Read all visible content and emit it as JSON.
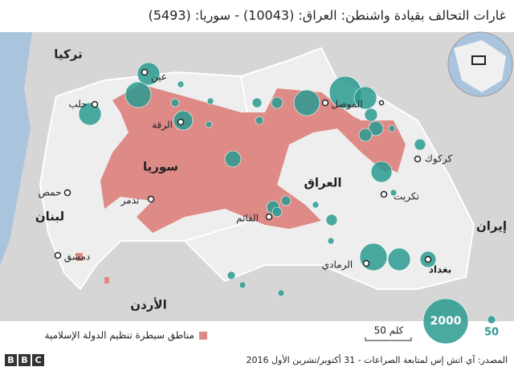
{
  "title": "غارات التحالف بقيادة واشنطن: العراق: (10043) - سوريا: (5493)",
  "countries": [
    "تركيا",
    "سوريا",
    "العراق",
    "لبنان",
    "الأردن",
    "إيران"
  ],
  "cities": [
    "عين",
    "حلب",
    "الرقة",
    "تدمر",
    "حمص",
    "دمشق",
    "القائم",
    "الموصل",
    "كركوك",
    "تكريت",
    "الرمادي",
    "بغداد"
  ],
  "legend": {
    "area": "مناطق سيطرة تنظيم الدولة الإسلامية",
    "sizes": [
      2000,
      50
    ]
  },
  "scale": "50 كلم",
  "source": "المصدر: آي اتش إس لمتابعة الصراعات - 31 أكتوبر/تشرين الأول 2016",
  "logo": [
    "B",
    "B",
    "C"
  ]
}
